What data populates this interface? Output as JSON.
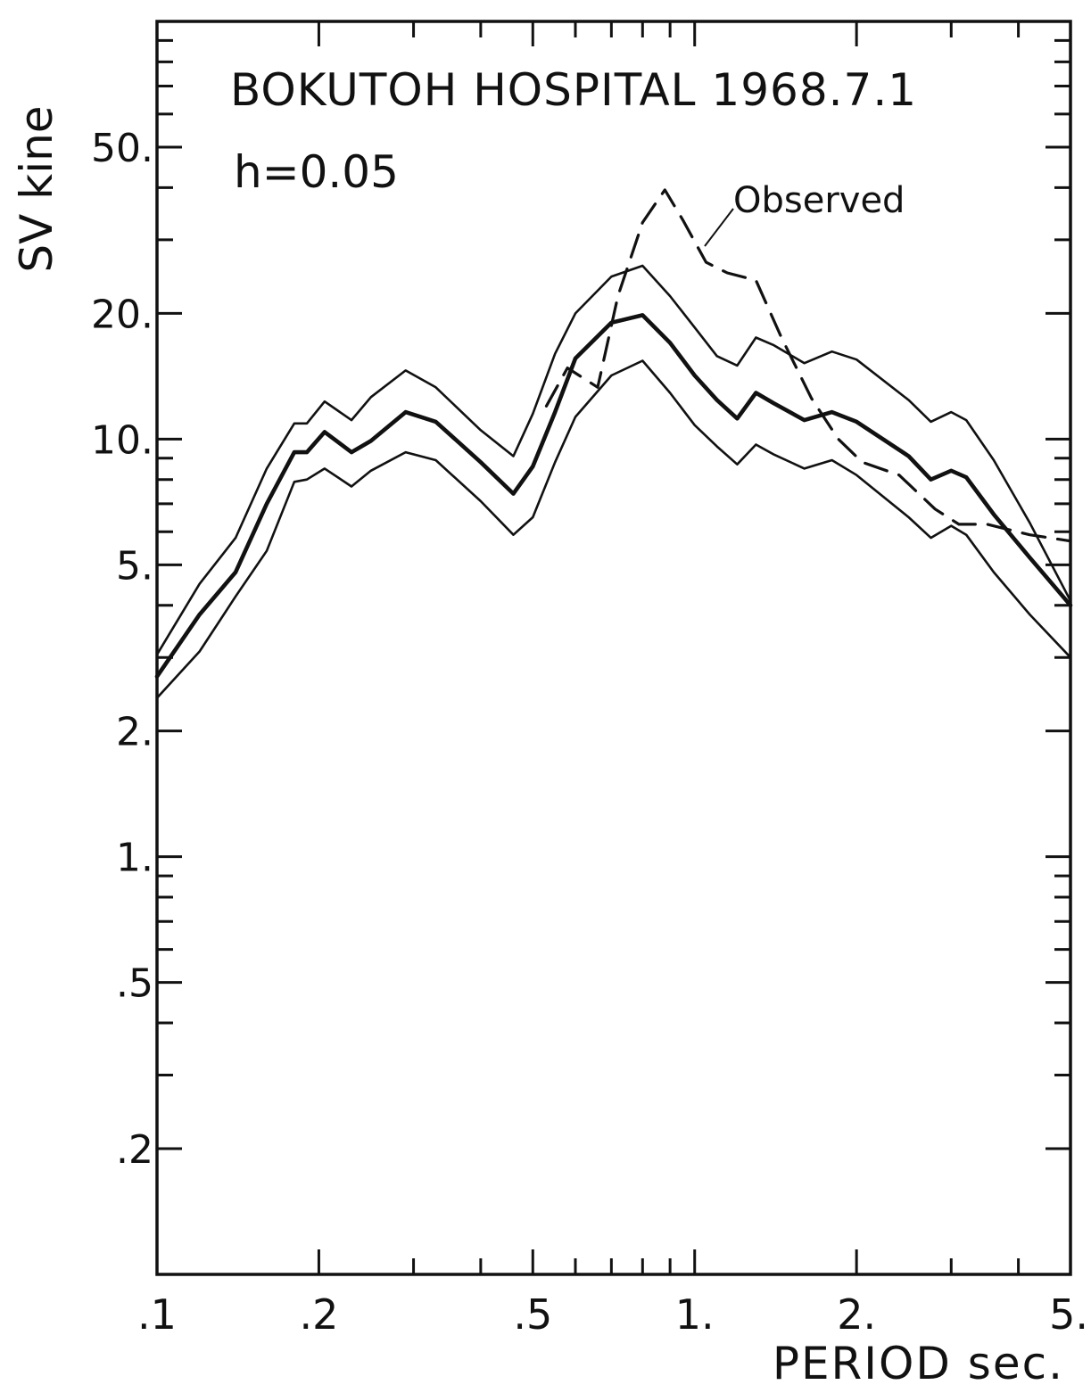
{
  "chart_data": {
    "type": "line",
    "title": "BOKUTOH HOSPITAL 1968.7.1",
    "subtitle": "h=0.05",
    "xlabel": "PERIOD sec.",
    "ylabel": "SV kine",
    "x_scale": "log",
    "y_scale": "log",
    "xlim": [
      0.1,
      5.0
    ],
    "ylim": [
      0.1,
      100
    ],
    "grid": false,
    "x_tick_labels": [
      {
        "value": 0.1,
        "label": ".1"
      },
      {
        "value": 0.2,
        "label": ".2"
      },
      {
        "value": 0.5,
        "label": ".5"
      },
      {
        "value": 1.0,
        "label": "1."
      },
      {
        "value": 2.0,
        "label": "2."
      },
      {
        "value": 5.0,
        "label": "5."
      }
    ],
    "y_tick_labels": [
      {
        "value": 0.2,
        "label": ".2"
      },
      {
        "value": 0.5,
        "label": ".5"
      },
      {
        "value": 1.0,
        "label": "1."
      },
      {
        "value": 2.0,
        "label": "2."
      },
      {
        "value": 5.0,
        "label": "5."
      },
      {
        "value": 10.0,
        "label": "10."
      },
      {
        "value": 20.0,
        "label": "20."
      },
      {
        "value": 50.0,
        "label": "50."
      }
    ],
    "annotations": [
      {
        "text": "Observed",
        "target_series": 3,
        "x": 1.0,
        "y": 32
      }
    ],
    "series": [
      {
        "style": "solid",
        "width": "thin",
        "points": [
          [
            0.1,
            3.05
          ],
          [
            0.12,
            4.5
          ],
          [
            0.14,
            5.8
          ],
          [
            0.16,
            8.5
          ],
          [
            0.18,
            10.9
          ],
          [
            0.19,
            10.9
          ],
          [
            0.205,
            12.3
          ],
          [
            0.23,
            11.1
          ],
          [
            0.25,
            12.6
          ],
          [
            0.29,
            14.6
          ],
          [
            0.33,
            13.3
          ],
          [
            0.4,
            10.5
          ],
          [
            0.46,
            9.1
          ],
          [
            0.5,
            11.5
          ],
          [
            0.55,
            16.0
          ],
          [
            0.6,
            20.0
          ],
          [
            0.7,
            24.5
          ],
          [
            0.8,
            26.0
          ],
          [
            0.9,
            22.0
          ],
          [
            1.0,
            18.5
          ],
          [
            1.1,
            15.8
          ],
          [
            1.2,
            15.0
          ],
          [
            1.3,
            17.5
          ],
          [
            1.4,
            16.8
          ],
          [
            1.6,
            15.2
          ],
          [
            1.8,
            16.2
          ],
          [
            2.0,
            15.5
          ],
          [
            2.5,
            12.4
          ],
          [
            2.75,
            11.0
          ],
          [
            3.0,
            11.6
          ],
          [
            3.2,
            11.1
          ],
          [
            3.6,
            8.9
          ],
          [
            4.2,
            6.3
          ],
          [
            5.0,
            4.1
          ]
        ]
      },
      {
        "style": "solid",
        "width": "thick",
        "points": [
          [
            0.1,
            2.7
          ],
          [
            0.12,
            3.8
          ],
          [
            0.14,
            4.8
          ],
          [
            0.16,
            7.0
          ],
          [
            0.18,
            9.3
          ],
          [
            0.19,
            9.3
          ],
          [
            0.205,
            10.4
          ],
          [
            0.23,
            9.3
          ],
          [
            0.25,
            9.9
          ],
          [
            0.29,
            11.6
          ],
          [
            0.33,
            11.0
          ],
          [
            0.4,
            8.8
          ],
          [
            0.46,
            7.4
          ],
          [
            0.5,
            8.6
          ],
          [
            0.55,
            11.6
          ],
          [
            0.6,
            15.6
          ],
          [
            0.7,
            19.0
          ],
          [
            0.8,
            19.8
          ],
          [
            0.9,
            17.0
          ],
          [
            1.0,
            14.2
          ],
          [
            1.1,
            12.4
          ],
          [
            1.2,
            11.2
          ],
          [
            1.3,
            12.9
          ],
          [
            1.4,
            12.2
          ],
          [
            1.6,
            11.1
          ],
          [
            1.8,
            11.6
          ],
          [
            2.0,
            11.0
          ],
          [
            2.5,
            9.1
          ],
          [
            2.75,
            8.0
          ],
          [
            3.0,
            8.4
          ],
          [
            3.2,
            8.1
          ],
          [
            3.6,
            6.6
          ],
          [
            4.2,
            5.2
          ],
          [
            5.0,
            4.0
          ]
        ]
      },
      {
        "style": "solid",
        "width": "thin",
        "points": [
          [
            0.1,
            2.4
          ],
          [
            0.12,
            3.1
          ],
          [
            0.14,
            4.2
          ],
          [
            0.16,
            5.4
          ],
          [
            0.18,
            7.9
          ],
          [
            0.19,
            8.0
          ],
          [
            0.205,
            8.5
          ],
          [
            0.23,
            7.7
          ],
          [
            0.25,
            8.4
          ],
          [
            0.29,
            9.3
          ],
          [
            0.33,
            8.9
          ],
          [
            0.4,
            7.1
          ],
          [
            0.46,
            5.9
          ],
          [
            0.5,
            6.5
          ],
          [
            0.55,
            8.8
          ],
          [
            0.6,
            11.3
          ],
          [
            0.7,
            14.2
          ],
          [
            0.8,
            15.4
          ],
          [
            0.9,
            12.9
          ],
          [
            1.0,
            10.8
          ],
          [
            1.1,
            9.6
          ],
          [
            1.2,
            8.7
          ],
          [
            1.3,
            9.7
          ],
          [
            1.4,
            9.2
          ],
          [
            1.6,
            8.5
          ],
          [
            1.8,
            8.9
          ],
          [
            2.0,
            8.2
          ],
          [
            2.5,
            6.5
          ],
          [
            2.75,
            5.8
          ],
          [
            3.0,
            6.2
          ],
          [
            3.2,
            5.9
          ],
          [
            3.6,
            4.8
          ],
          [
            4.2,
            3.8
          ],
          [
            5.0,
            3.0
          ]
        ]
      },
      {
        "name": "Observed",
        "style": "dashed",
        "width": "medium",
        "points": [
          [
            0.53,
            12.0
          ],
          [
            0.58,
            14.8
          ],
          [
            0.66,
            13.3
          ],
          [
            0.72,
            22.0
          ],
          [
            0.8,
            33.0
          ],
          [
            0.88,
            39.5
          ],
          [
            0.95,
            33.5
          ],
          [
            1.05,
            26.5
          ],
          [
            1.15,
            25.0
          ],
          [
            1.3,
            24.0
          ],
          [
            1.45,
            17.5
          ],
          [
            1.65,
            12.5
          ],
          [
            1.85,
            10.0
          ],
          [
            2.05,
            8.8
          ],
          [
            2.4,
            8.2
          ],
          [
            2.8,
            6.8
          ],
          [
            3.1,
            6.25
          ],
          [
            3.5,
            6.25
          ],
          [
            4.2,
            5.9
          ],
          [
            5.0,
            5.7
          ]
        ]
      }
    ]
  }
}
